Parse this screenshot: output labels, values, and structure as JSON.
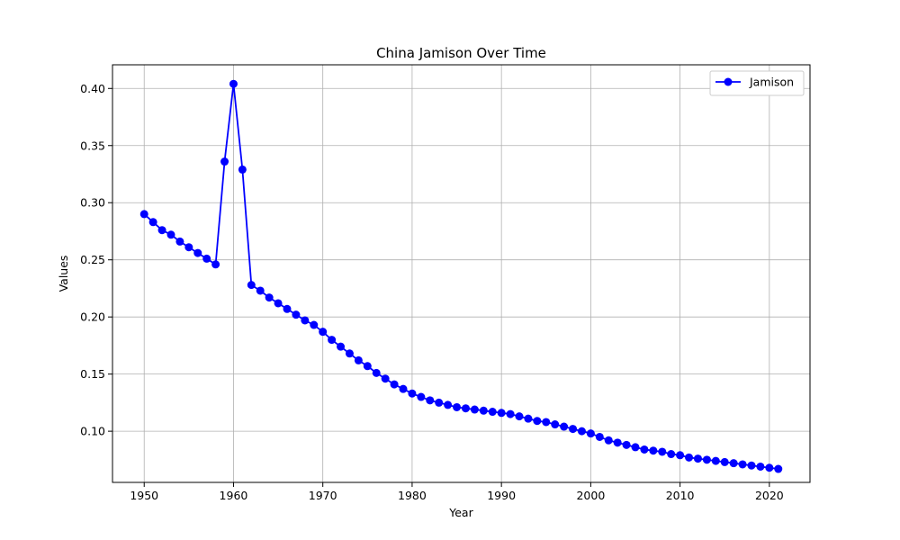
{
  "chart_data": {
    "type": "line",
    "title": "China Jamison Over Time",
    "xlabel": "Year",
    "ylabel": "Values",
    "xlim": [
      1946.45,
      2024.55
    ],
    "ylim": [
      0.0552,
      0.4207
    ],
    "xticks": [
      1950,
      1960,
      1970,
      1980,
      1990,
      2000,
      2010,
      2020
    ],
    "yticks": [
      0.1,
      0.15,
      0.2,
      0.25,
      0.3,
      0.35,
      0.4
    ],
    "ytick_labels": [
      "0.10",
      "0.15",
      "0.20",
      "0.25",
      "0.30",
      "0.35",
      "0.40"
    ],
    "grid": true,
    "legend_position": "top-right",
    "x": [
      1950,
      1951,
      1952,
      1953,
      1954,
      1955,
      1956,
      1957,
      1958,
      1959,
      1960,
      1961,
      1962,
      1963,
      1964,
      1965,
      1966,
      1967,
      1968,
      1969,
      1970,
      1971,
      1972,
      1973,
      1974,
      1975,
      1976,
      1977,
      1978,
      1979,
      1980,
      1981,
      1982,
      1983,
      1984,
      1985,
      1986,
      1987,
      1988,
      1989,
      1990,
      1991,
      1992,
      1993,
      1994,
      1995,
      1996,
      1997,
      1998,
      1999,
      2000,
      2001,
      2002,
      2003,
      2004,
      2005,
      2006,
      2007,
      2008,
      2009,
      2010,
      2011,
      2012,
      2013,
      2014,
      2015,
      2016,
      2017,
      2018,
      2019,
      2020,
      2021
    ],
    "series": [
      {
        "name": "Jamison",
        "color": "#0000ff",
        "marker": "circle",
        "values": [
          0.29,
          0.283,
          0.276,
          0.272,
          0.266,
          0.261,
          0.256,
          0.251,
          0.246,
          0.336,
          0.404,
          0.329,
          0.228,
          0.223,
          0.217,
          0.212,
          0.207,
          0.202,
          0.197,
          0.193,
          0.187,
          0.18,
          0.174,
          0.168,
          0.162,
          0.157,
          0.151,
          0.146,
          0.141,
          0.137,
          0.133,
          0.13,
          0.127,
          0.125,
          0.123,
          0.121,
          0.12,
          0.119,
          0.118,
          0.117,
          0.116,
          0.115,
          0.113,
          0.111,
          0.109,
          0.108,
          0.106,
          0.104,
          0.102,
          0.1,
          0.098,
          0.095,
          0.092,
          0.09,
          0.088,
          0.086,
          0.084,
          0.083,
          0.082,
          0.08,
          0.079,
          0.077,
          0.076,
          0.075,
          0.074,
          0.073,
          0.072,
          0.071,
          0.07,
          0.069,
          0.068,
          0.067
        ]
      }
    ]
  }
}
